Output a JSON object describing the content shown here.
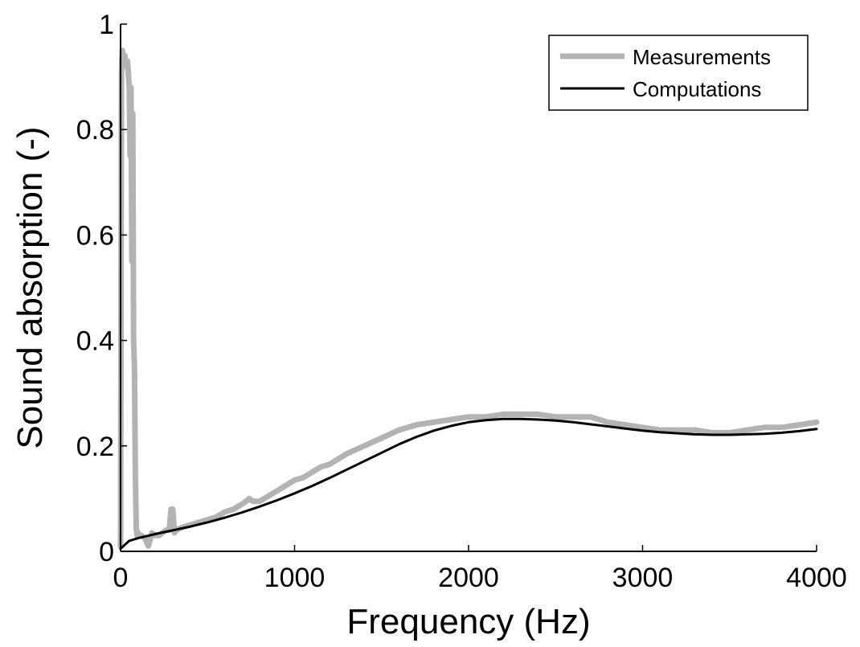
{
  "chart_data": {
    "type": "line",
    "title": "",
    "xlabel": "Frequency (Hz)",
    "ylabel": "Sound absorption (-)",
    "xlim": [
      0,
      4000
    ],
    "ylim": [
      0,
      1
    ],
    "xticks": [
      0,
      1000,
      2000,
      3000,
      4000
    ],
    "yticks": [
      0,
      0.2,
      0.4,
      0.6,
      0.8,
      1
    ],
    "xtick_labels": [
      "0",
      "1000",
      "2000",
      "3000",
      "4000"
    ],
    "ytick_labels": [
      "0",
      "0.2",
      "0.4",
      "0.6",
      "0.8",
      "1"
    ],
    "grid": false,
    "legend_position": "top-right",
    "series": [
      {
        "name": "Measurements",
        "color": "#b3b3b3",
        "x": [
          0,
          5,
          10,
          15,
          20,
          25,
          30,
          40,
          50,
          55,
          60,
          65,
          70,
          75,
          80,
          85,
          90,
          95,
          100,
          110,
          120,
          140,
          160,
          180,
          200,
          220,
          240,
          260,
          280,
          290,
          300,
          310,
          320,
          350,
          400,
          450,
          500,
          550,
          600,
          650,
          700,
          720,
          740,
          760,
          800,
          850,
          900,
          950,
          1000,
          1050,
          1100,
          1150,
          1200,
          1250,
          1300,
          1400,
          1500,
          1600,
          1700,
          1800,
          1900,
          2000,
          2100,
          2200,
          2300,
          2400,
          2500,
          2600,
          2700,
          2800,
          2900,
          3000,
          3100,
          3200,
          3300,
          3400,
          3500,
          3600,
          3700,
          3800,
          3900,
          4000
        ],
        "y": [
          0.01,
          0.91,
          0.95,
          0.94,
          0.93,
          0.94,
          0.92,
          0.93,
          0.88,
          0.75,
          0.88,
          0.55,
          0.83,
          0.4,
          0.35,
          0.15,
          0.045,
          0.03,
          0.035,
          0.03,
          0.03,
          0.025,
          0.01,
          0.035,
          0.03,
          0.03,
          0.035,
          0.04,
          0.04,
          0.08,
          0.08,
          0.035,
          0.04,
          0.045,
          0.05,
          0.055,
          0.06,
          0.065,
          0.075,
          0.08,
          0.09,
          0.095,
          0.1,
          0.095,
          0.095,
          0.105,
          0.115,
          0.125,
          0.135,
          0.14,
          0.15,
          0.16,
          0.165,
          0.175,
          0.185,
          0.2,
          0.215,
          0.23,
          0.24,
          0.245,
          0.25,
          0.255,
          0.255,
          0.26,
          0.26,
          0.26,
          0.255,
          0.255,
          0.255,
          0.245,
          0.24,
          0.235,
          0.23,
          0.23,
          0.23,
          0.225,
          0.225,
          0.23,
          0.235,
          0.235,
          0.24,
          0.245
        ]
      },
      {
        "name": "Computations",
        "color": "#000000",
        "x": [
          0,
          50,
          100,
          200,
          300,
          400,
          500,
          600,
          700,
          800,
          900,
          1000,
          1100,
          1200,
          1300,
          1400,
          1500,
          1600,
          1700,
          1800,
          1900,
          2000,
          2100,
          2200,
          2300,
          2400,
          2500,
          2600,
          2700,
          2800,
          2900,
          3000,
          3100,
          3200,
          3300,
          3400,
          3500,
          3600,
          3700,
          3800,
          3900,
          4000
        ],
        "y": [
          0.005,
          0.02,
          0.025,
          0.033,
          0.04,
          0.047,
          0.055,
          0.064,
          0.074,
          0.085,
          0.097,
          0.11,
          0.124,
          0.139,
          0.155,
          0.171,
          0.187,
          0.203,
          0.217,
          0.229,
          0.238,
          0.245,
          0.249,
          0.251,
          0.251,
          0.25,
          0.248,
          0.245,
          0.241,
          0.237,
          0.233,
          0.229,
          0.226,
          0.224,
          0.222,
          0.221,
          0.221,
          0.222,
          0.223,
          0.225,
          0.228,
          0.232
        ]
      }
    ]
  }
}
